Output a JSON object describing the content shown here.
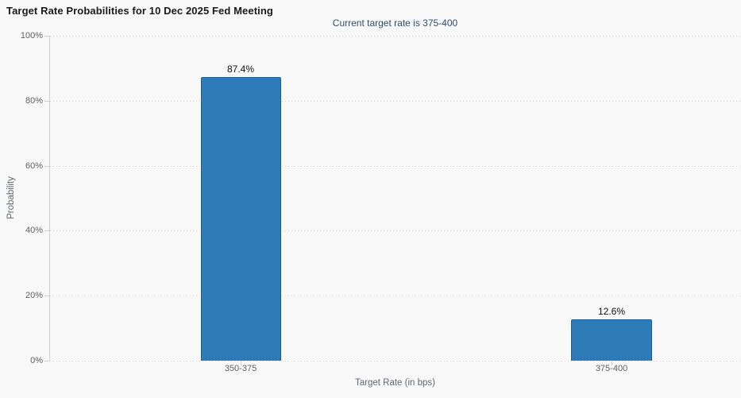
{
  "chart_data": {
    "type": "bar",
    "title": "Target Rate Probabilities for 10 Dec 2025 Fed Meeting",
    "subtitle": "Current target rate is 375-400",
    "categories": [
      "350-375",
      "375-400"
    ],
    "values": [
      87.4,
      12.6
    ],
    "data_labels": [
      "87.4%",
      "12.6%"
    ],
    "xlabel": "Target Rate (in bps)",
    "ylabel": "Probability",
    "ylim": [
      0,
      100
    ],
    "y_tick_step": 20,
    "y_ticks": [
      "0%",
      "20%",
      "40%",
      "60%",
      "80%",
      "100%"
    ],
    "grid": "horizontal-dotted",
    "legend": "none",
    "colors": {
      "background": "#f8f8f8",
      "bar_fill": "#2d7cb9",
      "bar_border": "#1a5e8e",
      "title_text": "#1a1a1a",
      "subtitle_text": "#2f4d6f",
      "tick_label": "#606060",
      "axis_title": "#5c6873",
      "gridline": "#cfcfcf",
      "axis_line": "#cccccc",
      "data_label": "#111111"
    }
  }
}
